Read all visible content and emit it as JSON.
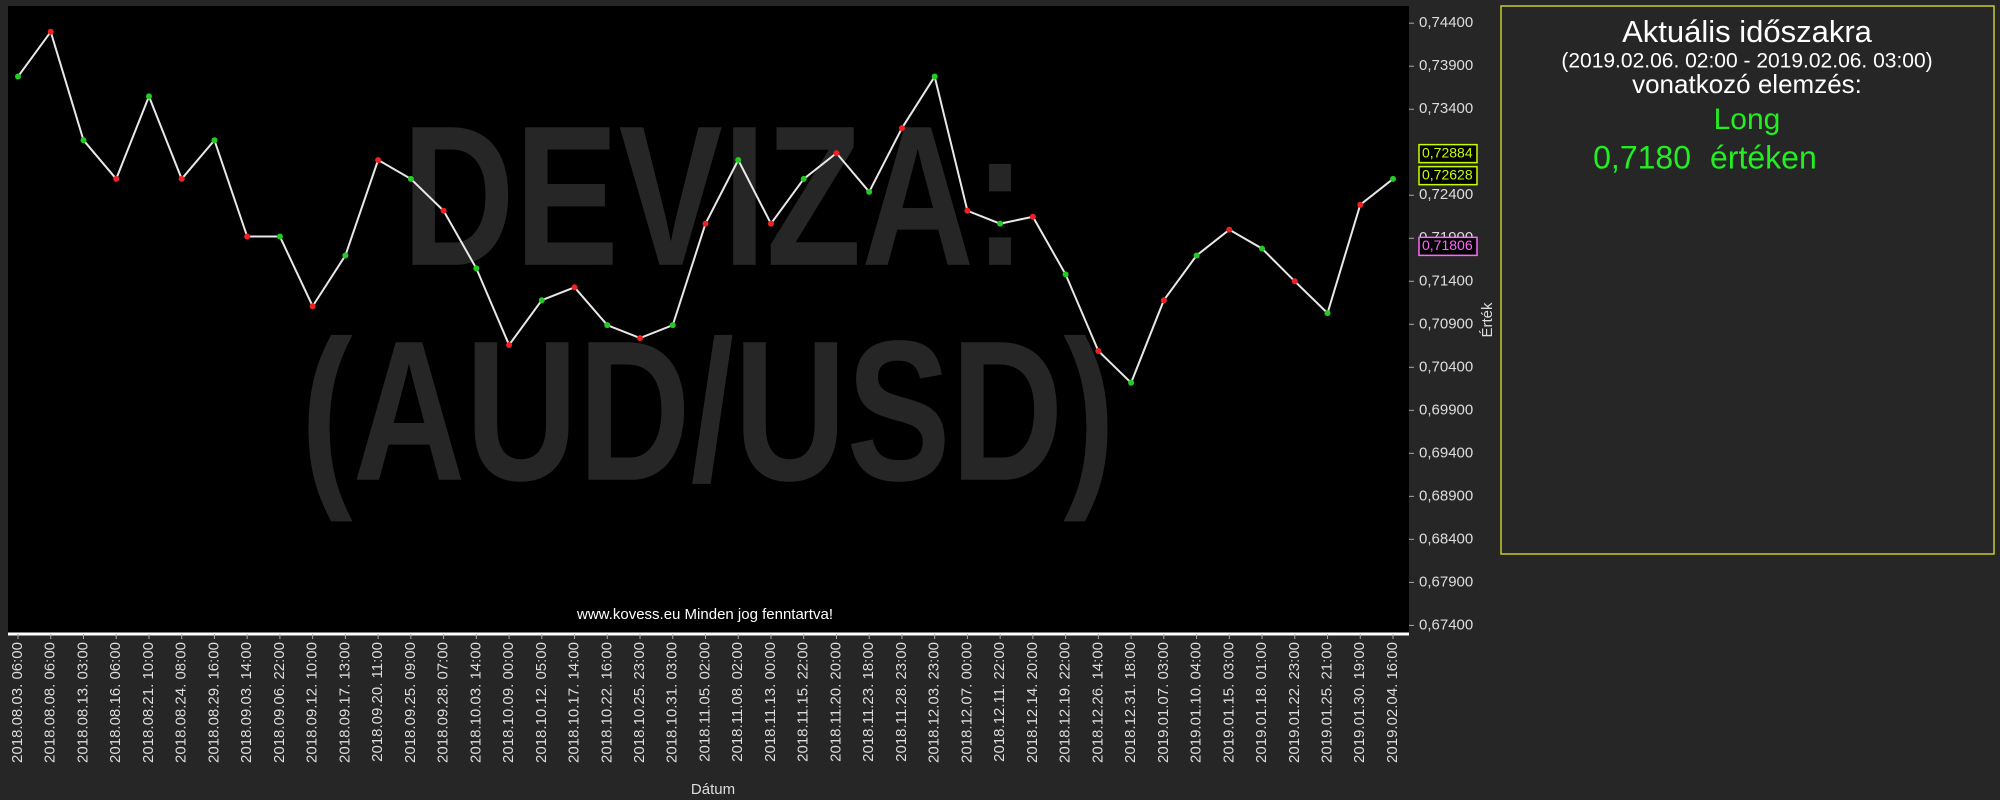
{
  "chart_data": {
    "type": "line",
    "watermark": [
      "DEVIZA:",
      "(AUD/USD)"
    ],
    "footer": "www.kovess.eu Minden jog fenntartva!",
    "xlabel": "Dátum",
    "ylabel": "Érték",
    "categories": [
      "2018.08.03. 06:00",
      "2018.08.08. 06:00",
      "2018.08.13. 03:00",
      "2018.08.16. 06:00",
      "2018.08.21. 10:00",
      "2018.08.24. 08:00",
      "2018.08.29. 16:00",
      "2018.09.03. 14:00",
      "2018.09.06. 22:00",
      "2018.09.12. 10:00",
      "2018.09.17. 13:00",
      "2018.09.20. 11:00",
      "2018.09.25. 09:00",
      "2018.09.28. 07:00",
      "2018.10.03. 14:00",
      "2018.10.09. 00:00",
      "2018.10.12. 05:00",
      "2018.10.17. 14:00",
      "2018.10.22. 16:00",
      "2018.10.25. 23:00",
      "2018.10.31. 03:00",
      "2018.11.05. 02:00",
      "2018.11.08. 02:00",
      "2018.11.13. 00:00",
      "2018.11.15. 22:00",
      "2018.11.20. 20:00",
      "2018.11.23. 18:00",
      "2018.11.28. 23:00",
      "2018.12.03. 23:00",
      "2018.12.07. 00:00",
      "2018.12.11. 22:00",
      "2018.12.14. 20:00",
      "2018.12.19. 22:00",
      "2018.12.26. 14:00",
      "2018.12.31. 18:00",
      "2019.01.07. 03:00",
      "2019.01.10. 04:00",
      "2019.01.15. 03:00",
      "2019.01.18. 01:00",
      "2019.01.22. 23:00",
      "2019.01.25. 21:00",
      "2019.01.30. 19:00",
      "2019.02.04. 16:00"
    ],
    "values": [
      0.7378,
      0.743,
      0.7304,
      0.7259,
      0.7355,
      0.7259,
      0.7304,
      0.7192,
      0.7192,
      0.7111,
      0.717,
      0.7281,
      0.7259,
      0.7222,
      0.7155,
      0.7066,
      0.7118,
      0.7133,
      0.7089,
      0.7074,
      0.7089,
      0.7207,
      0.7281,
      0.7207,
      0.7259,
      0.7289,
      0.7244,
      0.7318,
      0.7378,
      0.7222,
      0.7207,
      0.7215,
      0.7148,
      0.7059,
      0.7022,
      0.7118,
      0.717,
      0.72,
      0.7178,
      0.714,
      0.7103,
      0.7229,
      0.7259
    ],
    "color": "#e8e8e8",
    "ylim": [
      0.673,
      0.746
    ],
    "yticks": [
      {
        "value": 0.744,
        "label": "0,74400"
      },
      {
        "value": 0.739,
        "label": "0,73900"
      },
      {
        "value": 0.734,
        "label": "0,73400"
      },
      {
        "value": 0.724,
        "label": "0,72400"
      },
      {
        "value": 0.719,
        "label": "0,71900"
      },
      {
        "value": 0.714,
        "label": "0,71400"
      },
      {
        "value": 0.709,
        "label": "0,70900"
      },
      {
        "value": 0.704,
        "label": "0,70400"
      },
      {
        "value": 0.699,
        "label": "0,69900"
      },
      {
        "value": 0.694,
        "label": "0,69400"
      },
      {
        "value": 0.689,
        "label": "0,68900"
      },
      {
        "value": 0.684,
        "label": "0,68400"
      },
      {
        "value": 0.679,
        "label": "0,67900"
      },
      {
        "value": 0.674,
        "label": "0,67400"
      }
    ],
    "price_tags": [
      {
        "value": 0.72884,
        "label": "0,72884",
        "color": "#c8ff00"
      },
      {
        "value": 0.72628,
        "label": "0,72628",
        "color": "#c8ff00"
      },
      {
        "value": 0.71806,
        "label": "0,71806",
        "color": "#ff66ff"
      }
    ],
    "panel": {
      "title": "Aktuális időszakra",
      "period": "(2019.02.06. 02:00 - 2019.02.06. 03:00)",
      "subtitle": "vonatkozó elemzés:",
      "signal": "Long",
      "price": "0,7180",
      "suffix": "értéken"
    }
  }
}
